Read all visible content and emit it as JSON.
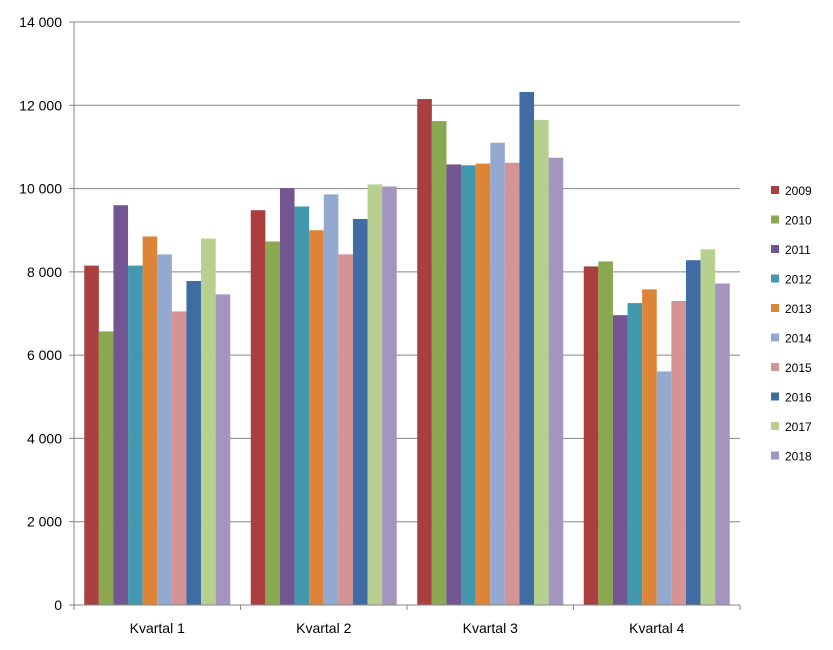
{
  "chart_data": {
    "type": "bar",
    "categories": [
      "Kvartal 1",
      "Kvartal 2",
      "Kvartal 3",
      "Kvartal 4"
    ],
    "ylim": [
      0,
      14000
    ],
    "yticks": [
      0,
      2000,
      4000,
      6000,
      8000,
      10000,
      12000,
      14000
    ],
    "ytick_labels": [
      "0",
      "2 000",
      "4 000",
      "6 000",
      "8 000",
      "10 000",
      "12 000",
      "14 000"
    ],
    "grid": true,
    "legend_position": "right",
    "series": [
      {
        "name": "2009",
        "color": "#A9403F",
        "values": [
          8150,
          9480,
          12150,
          8130
        ]
      },
      {
        "name": "2010",
        "color": "#8AA84F",
        "values": [
          6570,
          8730,
          11620,
          8250
        ]
      },
      {
        "name": "2011",
        "color": "#735592",
        "values": [
          9600,
          10010,
          10580,
          6960
        ]
      },
      {
        "name": "2012",
        "color": "#4298AE",
        "values": [
          8150,
          9570,
          10560,
          7250
        ]
      },
      {
        "name": "2013",
        "color": "#DC8539",
        "values": [
          8850,
          9000,
          10600,
          7580
        ]
      },
      {
        "name": "2014",
        "color": "#93A9CF",
        "values": [
          8420,
          9860,
          11100,
          5610
        ]
      },
      {
        "name": "2015",
        "color": "#D39493",
        "values": [
          7050,
          8420,
          10620,
          7300
        ]
      },
      {
        "name": "2016",
        "color": "#3F6DA3",
        "values": [
          7780,
          9270,
          12320,
          8280
        ]
      },
      {
        "name": "2017",
        "color": "#B7D08F",
        "values": [
          8800,
          10100,
          11650,
          8540
        ]
      },
      {
        "name": "2018",
        "color": "#A495BE",
        "values": [
          7460,
          10050,
          10740,
          7720
        ]
      }
    ]
  }
}
